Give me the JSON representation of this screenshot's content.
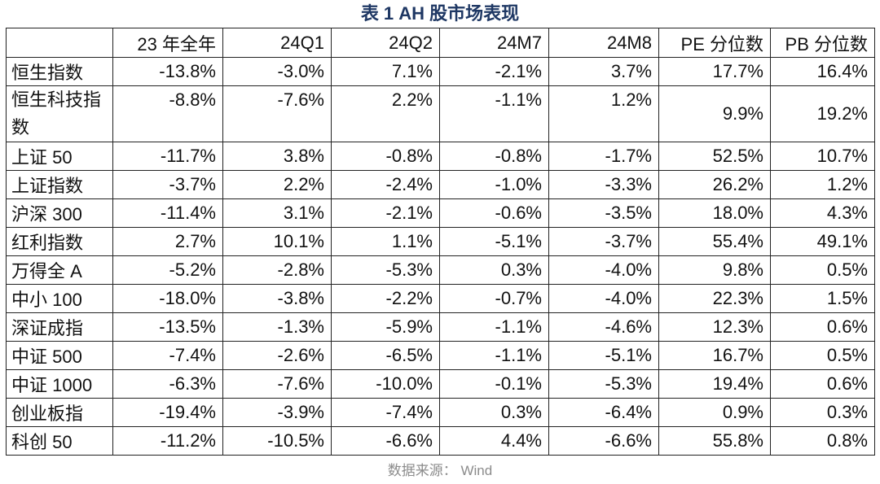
{
  "title": "表 1 AH 股市场表现",
  "columns": [
    "",
    "23 年全年",
    "24Q1",
    "24Q2",
    "24M7",
    "24M8",
    "PE 分位数",
    "PB 分位数"
  ],
  "rows": [
    [
      "恒生指数",
      "-13.8%",
      "-3.0%",
      "7.1%",
      "-2.1%",
      "3.7%",
      "17.7%",
      "16.4%"
    ],
    [
      "恒生科技指数",
      "-8.8%",
      "-7.6%",
      "2.2%",
      "-1.1%",
      "1.2%",
      "9.9%",
      "19.2%"
    ],
    [
      "上证 50",
      "-11.7%",
      "3.8%",
      "-0.8%",
      "-0.8%",
      "-1.7%",
      "52.5%",
      "10.7%"
    ],
    [
      "上证指数",
      "-3.7%",
      "2.2%",
      "-2.4%",
      "-1.0%",
      "-3.3%",
      "26.2%",
      "1.2%"
    ],
    [
      "沪深 300",
      "-11.4%",
      "3.1%",
      "-2.1%",
      "-0.6%",
      "-3.5%",
      "18.0%",
      "4.3%"
    ],
    [
      "红利指数",
      "2.7%",
      "10.1%",
      "1.1%",
      "-5.1%",
      "-3.7%",
      "55.4%",
      "49.1%"
    ],
    [
      "万得全 A",
      "-5.2%",
      "-2.8%",
      "-5.3%",
      "0.3%",
      "-4.0%",
      "9.8%",
      "0.5%"
    ],
    [
      "中小 100",
      "-18.0%",
      "-3.8%",
      "-2.2%",
      "-0.7%",
      "-4.0%",
      "22.3%",
      "1.5%"
    ],
    [
      "深证成指",
      "-13.5%",
      "-1.3%",
      "-5.9%",
      "-1.1%",
      "-4.6%",
      "12.3%",
      "0.6%"
    ],
    [
      "中证 500",
      "-7.4%",
      "-2.6%",
      "-6.5%",
      "-1.1%",
      "-5.1%",
      "16.7%",
      "0.5%"
    ],
    [
      "中证 1000",
      "-6.3%",
      "-7.6%",
      "-10.0%",
      "-0.1%",
      "-5.3%",
      "19.4%",
      "0.6%"
    ],
    [
      "创业板指",
      "-19.4%",
      "-3.9%",
      "-7.4%",
      "0.3%",
      "-6.4%",
      "0.9%",
      "0.3%"
    ],
    [
      "科创 50",
      "-11.2%",
      "-10.5%",
      "-6.6%",
      "4.4%",
      "-6.6%",
      "55.8%",
      "0.8%"
    ]
  ],
  "source": "数据来源： Wind"
}
